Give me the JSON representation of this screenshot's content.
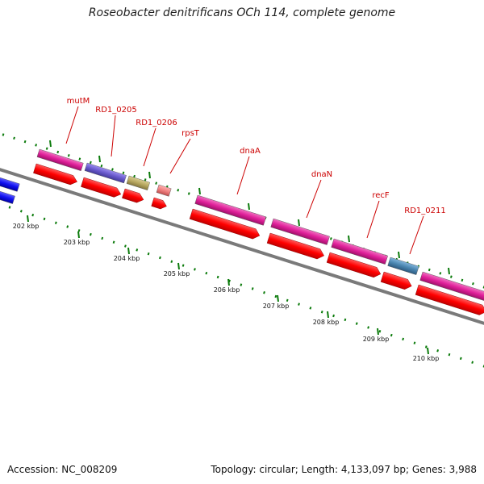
{
  "header": {
    "title": "Roseobacter denitrificans OCh 114, complete genome"
  },
  "footer": {
    "accession": "Accession: NC_008209",
    "summary": "Topology: circular; Length: 4,133,097 bp; Genes: 3,988"
  },
  "map": {
    "tick_labels": [
      "202 kbp",
      "203 kbp",
      "204 kbp",
      "205 kbp",
      "206 kbp",
      "207 kbp",
      "208 kbp",
      "209 kbp",
      "210 kbp"
    ],
    "gene_labels": [
      "mutM",
      "RD1_0205",
      "RD1_0206",
      "rpsT",
      "dnaA",
      "dnaN",
      "recF",
      "RD1_0211"
    ],
    "colors": {
      "backbone": "#7a7a7a",
      "cds": "#ff0000",
      "gene_magenta": "#e0209a",
      "gene_purple": "#6a5acd",
      "gene_olive": "#b8a860",
      "gene_pink": "#f08080",
      "gene_teal": "#4a86b0",
      "gene_blue": "#1010f0",
      "tick_green": "#0a7a0a",
      "label_red": "#cc0000"
    }
  }
}
